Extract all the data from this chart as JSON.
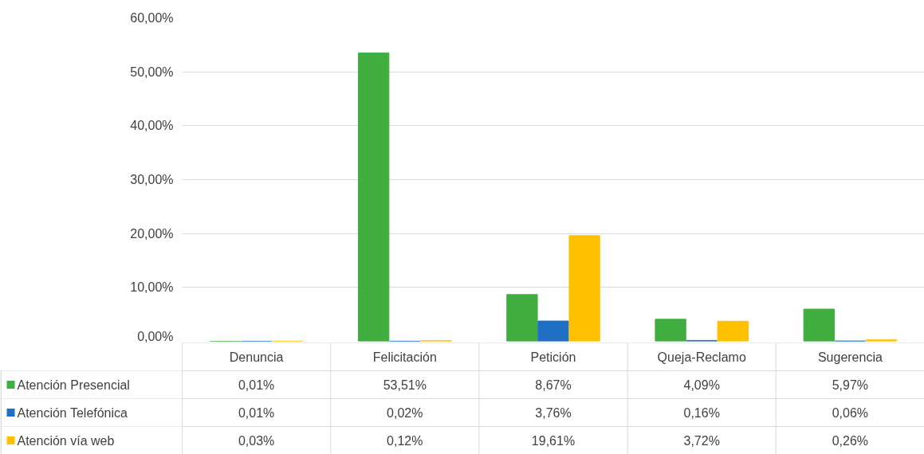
{
  "chart_data": {
    "type": "bar",
    "categories": [
      "Denuncia",
      "Felicitación",
      "Petición",
      "Queja-Reclamo",
      "Sugerencia"
    ],
    "series": [
      {
        "name": "Atención Presencial",
        "color": "#3fae3f",
        "values": [
          0.01,
          53.51,
          8.67,
          4.09,
          5.97
        ],
        "value_labels": [
          "0,01%",
          "53,51%",
          "8,67%",
          "4,09%",
          "5,97%"
        ]
      },
      {
        "name": "Atención Telefónica",
        "color": "#1f6fc5",
        "values": [
          0.01,
          0.02,
          3.76,
          0.16,
          0.06
        ],
        "value_labels": [
          "0,01%",
          "0,02%",
          "3,76%",
          "0,16%",
          "0,06%"
        ]
      },
      {
        "name": "Atención vía web",
        "color": "#ffc000",
        "values": [
          0.03,
          0.12,
          19.61,
          3.72,
          0.26
        ],
        "value_labels": [
          "0,03%",
          "0,12%",
          "19,61%",
          "3,72%",
          "0,26%"
        ]
      }
    ],
    "ylim": [
      0,
      60
    ],
    "yticks": [
      {
        "value": 0,
        "label": "0,00%"
      },
      {
        "value": 10,
        "label": "10,00%"
      },
      {
        "value": 20,
        "label": "20,00%"
      },
      {
        "value": 30,
        "label": "30,00%"
      },
      {
        "value": 40,
        "label": "40,00%"
      },
      {
        "value": 50,
        "label": "50,00%"
      },
      {
        "value": 60,
        "label": "60,00%"
      }
    ],
    "grid": "y",
    "legend": "bottom left"
  }
}
